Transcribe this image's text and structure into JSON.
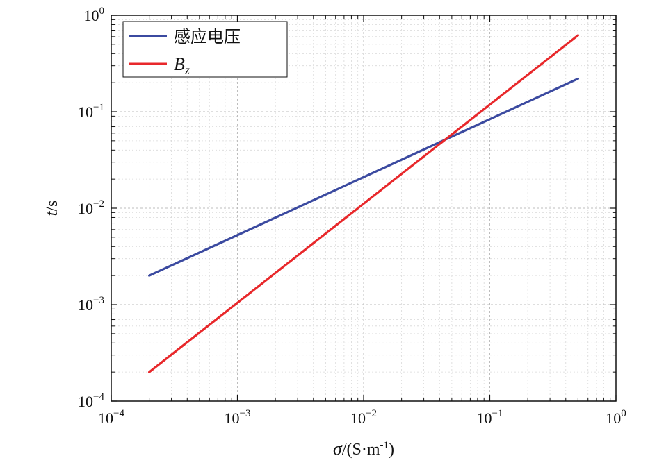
{
  "chart_data": {
    "type": "line",
    "xscale": "log",
    "yscale": "log",
    "xlim": [
      0.0001,
      1
    ],
    "ylim": [
      0.0001,
      1
    ],
    "grid": true,
    "legend_position": "top-left",
    "xlabel": {
      "symbol": "σ",
      "unit_open": "/(S·m",
      "unit_exp": "-1",
      "unit_close": ")"
    },
    "ylabel": {
      "symbol": "t",
      "unit": "/s"
    },
    "x_ticks": [
      {
        "value": 0.0001,
        "base": "10",
        "exp": "−4"
      },
      {
        "value": 0.001,
        "base": "10",
        "exp": "−3"
      },
      {
        "value": 0.01,
        "base": "10",
        "exp": "−2"
      },
      {
        "value": 0.1,
        "base": "10",
        "exp": "−1"
      },
      {
        "value": 1,
        "base": "10",
        "exp": "0"
      }
    ],
    "y_ticks": [
      {
        "value": 0.0001,
        "base": "10",
        "exp": "−4"
      },
      {
        "value": 0.001,
        "base": "10",
        "exp": "−3"
      },
      {
        "value": 0.01,
        "base": "10",
        "exp": "−2"
      },
      {
        "value": 0.1,
        "base": "10",
        "exp": "−1"
      },
      {
        "value": 1,
        "base": "10",
        "exp": "0"
      }
    ],
    "series": [
      {
        "name": "感应电压",
        "color": "#3b4aa0",
        "x": [
          0.0002,
          0.5
        ],
        "y": [
          0.002,
          0.22
        ]
      },
      {
        "name_base": "B",
        "name_sub": "z",
        "color": "#e8282b",
        "x": [
          0.0002,
          0.5
        ],
        "y": [
          0.0002,
          0.62
        ]
      }
    ]
  }
}
